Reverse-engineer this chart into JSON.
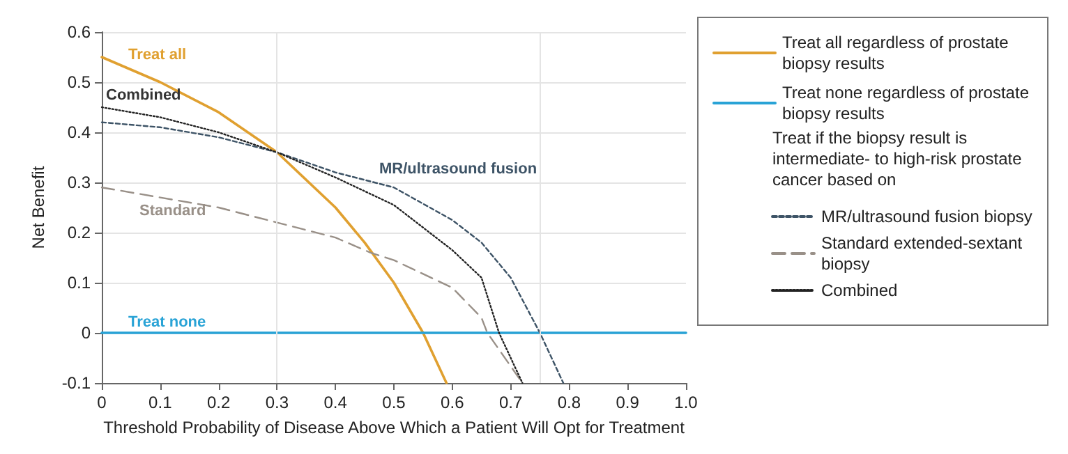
{
  "chart_data": {
    "type": "line",
    "xlabel": "Threshold Probability of Disease Above Which a Patient Will Opt for Treatment",
    "ylabel": "Net Benefit",
    "xlim": [
      0,
      1
    ],
    "xticks": [
      0,
      0.1,
      0.2,
      0.3,
      0.4,
      0.5,
      0.6,
      0.7,
      0.8,
      0.9,
      {
        "value": 1,
        "label": "1.0"
      }
    ],
    "ylim": [
      -0.1,
      0.6
    ],
    "yticks": [
      -0.1,
      0,
      0.1,
      0.2,
      0.3,
      0.4,
      0.5,
      0.6
    ],
    "grid": "y",
    "legend": "right",
    "marker": "none",
    "legend_title": "Treat if the biopsy result is intermediate- to high-risk prostate cancer based on",
    "series": [
      {
        "name": "Treat all regardless of prostate biopsy results",
        "color": "#e0a030",
        "line_style": "solid",
        "x": [
          0,
          0.1,
          0.2,
          0.3,
          0.4,
          0.45,
          0.5,
          0.55,
          0.59
        ],
        "values": [
          0.55,
          0.5,
          0.44,
          0.36,
          0.25,
          0.18,
          0.1,
          0,
          -0.1
        ]
      },
      {
        "name": "Treat none regardless of prostate biopsy results",
        "color": "#29a3d6",
        "line_style": "solid",
        "x": [
          0,
          1
        ],
        "values": [
          0,
          0
        ]
      },
      {
        "name": "MR/ultrasound fusion biopsy",
        "color": "#3d5366",
        "line_style": "dashed",
        "x": [
          0,
          0.1,
          0.2,
          0.3,
          0.4,
          0.5,
          0.6,
          0.65,
          0.7,
          0.75,
          0.79
        ],
        "values": [
          0.42,
          0.41,
          0.39,
          0.36,
          0.32,
          0.29,
          0.225,
          0.18,
          0.11,
          0,
          -0.1
        ]
      },
      {
        "name": "Standard extended-sextant biopsy",
        "color": "#999088",
        "line_style": "dashed",
        "x": [
          0,
          0.1,
          0.2,
          0.3,
          0.4,
          0.46,
          0.5,
          0.6,
          0.65,
          0.66,
          0.72
        ],
        "values": [
          0.29,
          0.27,
          0.25,
          0.22,
          0.19,
          0.16,
          0.145,
          0.09,
          0.03,
          0,
          -0.1
        ]
      },
      {
        "name": "Combined",
        "color": "#222222",
        "line_style": "dotted",
        "x": [
          0,
          0.1,
          0.2,
          0.3,
          0.4,
          0.5,
          0.6,
          0.65,
          0.68,
          0.72
        ],
        "values": [
          0.45,
          0.43,
          0.4,
          0.36,
          0.31,
          0.255,
          0.165,
          0.11,
          0,
          -0.1
        ]
      }
    ],
    "ref_lines": [
      {
        "axis": "x",
        "value": 0.3,
        "color": "#e4e4e4"
      },
      {
        "axis": "x",
        "value": 0.75,
        "color": "#e4e4e4"
      }
    ],
    "annotations": [
      "Treat all",
      "Combined",
      "Standard",
      "Treat none",
      "MR/ultrasound fusion"
    ]
  }
}
